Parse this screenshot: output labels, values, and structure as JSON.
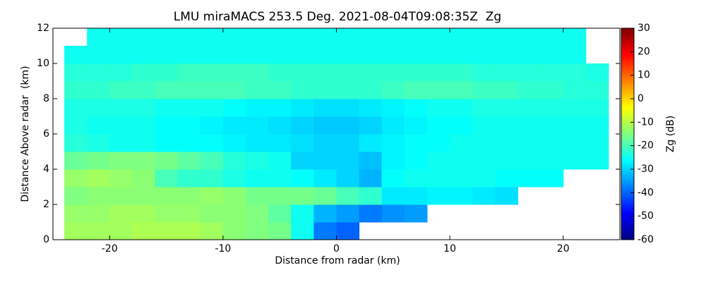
{
  "chart_data": {
    "type": "heatmap",
    "title": "LMU miraMACS 253.5 Deg. 2021-08-04T09:08:35Z  Zg",
    "x_label": "Distance from radar (km)",
    "y_label": "Distance Above radar  (km)",
    "colorbar_label": "Zg (dB)",
    "colormap": "jet",
    "x": [
      -23,
      -21,
      -19,
      -17,
      -15,
      -13,
      -11,
      -9,
      -7,
      -5,
      -3,
      -1,
      1,
      3,
      5,
      7,
      9,
      11,
      13,
      15,
      17,
      19,
      21,
      23
    ],
    "y": [
      0.5,
      1.5,
      2.5,
      3.5,
      4.5,
      5.5,
      6.5,
      7.5,
      8.5,
      9.5,
      10.5,
      11.5
    ],
    "values": [
      [
        -12,
        -12,
        -12,
        -11,
        -11,
        -11,
        -12,
        -14,
        -15,
        -16,
        -25,
        -38,
        -40,
        null,
        null,
        null,
        null,
        null,
        null,
        null,
        null,
        null,
        null,
        null
      ],
      [
        -13,
        -13,
        -12,
        -12,
        -13,
        -13,
        -14,
        -14,
        -15,
        -18,
        -25,
        -33,
        -35,
        -38,
        -36,
        -35,
        null,
        null,
        null,
        null,
        null,
        null,
        null,
        null
      ],
      [
        -15,
        -14,
        -14,
        -14,
        -14,
        -14,
        -13,
        -14,
        -16,
        -16,
        -16,
        -17,
        -20,
        -22,
        -28,
        -28,
        -27,
        -27,
        -28,
        -29,
        null,
        null,
        null,
        null
      ],
      [
        -13,
        -12,
        -13,
        -14,
        -20,
        -22,
        -22,
        -24,
        -25,
        -25,
        -26,
        -28,
        -30,
        -33,
        -26,
        -25,
        -25,
        -25,
        -25,
        -26,
        -26,
        -26,
        null,
        null
      ],
      [
        -17,
        -16,
        -15,
        -15,
        -16,
        -18,
        -20,
        -23,
        -24,
        -25,
        -30,
        -30,
        -30,
        -32,
        -27,
        -26,
        -25,
        -25,
        -25,
        -25,
        -25,
        -25,
        -25,
        -25
      ],
      [
        -23,
        -24,
        -25,
        -25,
        -26,
        -26,
        -26,
        -27,
        -28,
        -28,
        -29,
        -30,
        -30,
        -28,
        -27,
        -26,
        -26,
        -25,
        -25,
        -25,
        -25,
        -25,
        -25,
        -25
      ],
      [
        -24,
        -25,
        -25,
        -25,
        -26,
        -26,
        -27,
        -28,
        -28,
        -29,
        -30,
        -31,
        -31,
        -30,
        -28,
        -27,
        -26,
        -26,
        -25,
        -25,
        -25,
        -25,
        -25,
        -25
      ],
      [
        -24,
        -24,
        -24,
        -24,
        -25,
        -25,
        -25,
        -26,
        -27,
        -27,
        -28,
        -29,
        -29,
        -28,
        -27,
        -26,
        -25,
        -25,
        -24,
        -24,
        -24,
        -24,
        -24,
        -24
      ],
      [
        -22,
        -22,
        -21,
        -21,
        -20,
        -20,
        -20,
        -20,
        -21,
        -21,
        -22,
        -22,
        -22,
        -22,
        -21,
        -20,
        -20,
        -20,
        -21,
        -21,
        -22,
        -22,
        -23,
        -23
      ],
      [
        -23,
        -23,
        -23,
        -22,
        -22,
        -21,
        -21,
        -21,
        -21,
        -22,
        -22,
        -22,
        -22,
        -22,
        -22,
        -22,
        -22,
        -22,
        -23,
        -23,
        -23,
        -23,
        -23,
        -24
      ],
      [
        -25,
        -25,
        -25,
        -25,
        -25,
        -25,
        -25,
        -25,
        -25,
        -25,
        -25,
        -25,
        -25,
        -25,
        -25,
        -25,
        -25,
        -25,
        -25,
        -25,
        -25,
        -25,
        -25,
        null
      ],
      [
        null,
        -25,
        -25,
        -25,
        -25,
        -25,
        -25,
        -25,
        -25,
        -25,
        -25,
        -25,
        -25,
        -25,
        -25,
        -25,
        -25,
        -25,
        -25,
        -25,
        -25,
        -25,
        -25,
        null
      ]
    ],
    "xlim": [
      -25,
      25
    ],
    "ylim": [
      0,
      12
    ],
    "clim": [
      -60,
      30
    ],
    "xticks": [
      -20,
      -10,
      0,
      10,
      20
    ],
    "yticks": [
      0,
      2,
      4,
      6,
      8,
      10,
      12
    ],
    "cticks": [
      -60,
      -50,
      -40,
      -30,
      -20,
      -10,
      0,
      10,
      20,
      30
    ]
  }
}
